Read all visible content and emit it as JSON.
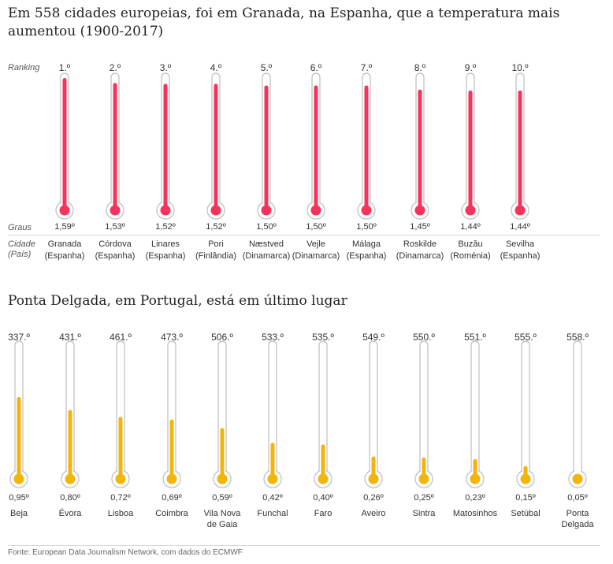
{
  "title_top": "Em 558 cidades europeias, foi em Granada, na Espanha, que a temperatura mais aumentou (1900-2017)",
  "title_bottom": "Ponta Delgada, em Portugal, está em último lugar",
  "labels": {
    "ranking": "Ranking",
    "graus": "Graus",
    "cidade": "Cidade",
    "pais": "(País)"
  },
  "source": "Fonte: European Data Journalism Network, com dados do ECMWF",
  "colors": {
    "top": "#f7335b",
    "bottom": "#f2b50b",
    "tube": "#bdbdbd"
  },
  "chart_data": [
    {
      "type": "bar",
      "categories": [
        "Granada",
        "Córdova",
        "Linares",
        "Pori",
        "Næstved",
        "Vejle",
        "Málaga",
        "Roskilde",
        "Buzău",
        "Sevilha"
      ],
      "countries": [
        "(Espanha)",
        "(Espanha)",
        "(Espanha)",
        "(Finlândia)",
        "(Dinamarca)",
        "(Dinamarca)",
        "(Espanha)",
        "(Dinamarca)",
        "(Roménia)",
        "(Espanha)"
      ],
      "ranks": [
        "1.º",
        "2.º",
        "3.º",
        "4.º",
        "5.º",
        "6.º",
        "7.º",
        "8.º",
        "9.º",
        "10.º"
      ],
      "values": [
        1.59,
        1.53,
        1.52,
        1.52,
        1.5,
        1.5,
        1.5,
        1.45,
        1.44,
        1.44
      ],
      "value_labels": [
        "1,59º",
        "1,53º",
        "1,52º",
        "1,52º",
        "1,50º",
        "1,50º",
        "1,50º",
        "1,45º",
        "1,44º",
        "1,44º"
      ]
    },
    {
      "type": "bar",
      "categories": [
        "Beja",
        "Évora",
        "Lisboa",
        "Coimbra",
        "Vila Nova de Gaia",
        "Funchal",
        "Faro",
        "Aveiro",
        "Sintra",
        "Matosinhos",
        "Setúbal",
        "Ponta Delgada"
      ],
      "ranks": [
        "337.º",
        "431.º",
        "461.º",
        "473.º",
        "506.º",
        "533.º",
        "535.º",
        "549.º",
        "550.º",
        "551.º",
        "555.º",
        "558.º"
      ],
      "values": [
        0.95,
        0.8,
        0.72,
        0.69,
        0.59,
        0.42,
        0.4,
        0.26,
        0.25,
        0.23,
        0.15,
        0.05
      ],
      "value_labels": [
        "0,95º",
        "0,80º",
        "0,72º",
        "0,69º",
        "0,59º",
        "0,42º",
        "0,40º",
        "0,26º",
        "0,25º",
        "0,23º",
        "0,15º",
        "0,05º"
      ]
    }
  ]
}
